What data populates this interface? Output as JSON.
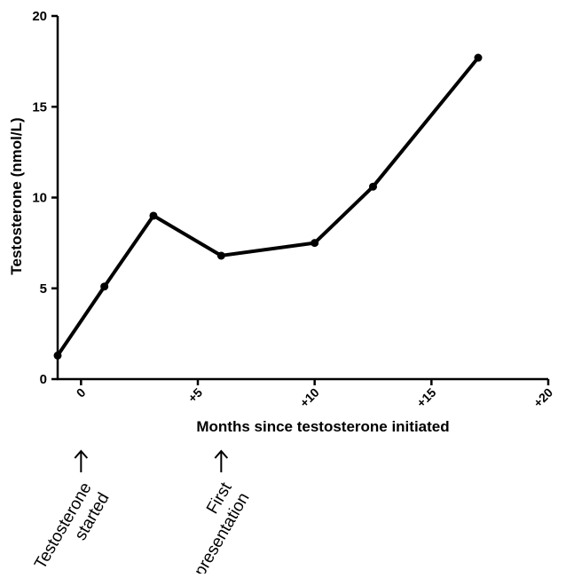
{
  "chart_data": {
    "type": "line",
    "title": "",
    "xlabel": "Months since testosterone initiated",
    "ylabel": "Testosterone (nmol/L)",
    "xlim": [
      -1,
      20
    ],
    "ylim": [
      0,
      20
    ],
    "x_ticks": [
      {
        "value": 0,
        "label": "0"
      },
      {
        "value": 5,
        "label": "+5"
      },
      {
        "value": 10,
        "label": "+10"
      },
      {
        "value": 15,
        "label": "+15"
      },
      {
        "value": 20,
        "label": "+20"
      }
    ],
    "y_ticks": [
      {
        "value": 0,
        "label": "0"
      },
      {
        "value": 5,
        "label": "5"
      },
      {
        "value": 10,
        "label": "10"
      },
      {
        "value": 15,
        "label": "15"
      },
      {
        "value": 20,
        "label": "20"
      }
    ],
    "grid": false,
    "series": [
      {
        "color": "#000000",
        "points": [
          {
            "x": -1.0,
            "y": 1.3
          },
          {
            "x": 1.0,
            "y": 5.1
          },
          {
            "x": 3.1,
            "y": 9.0
          },
          {
            "x": 6.0,
            "y": 6.8
          },
          {
            "x": 10.0,
            "y": 7.5
          },
          {
            "x": 12.5,
            "y": 10.6
          },
          {
            "x": 17.0,
            "y": 17.7
          }
        ]
      }
    ],
    "annotations": [
      {
        "at_x": 0,
        "lines": [
          "Testosterone",
          "started"
        ]
      },
      {
        "at_x": 6,
        "lines": [
          "First",
          "presentation"
        ]
      }
    ]
  }
}
